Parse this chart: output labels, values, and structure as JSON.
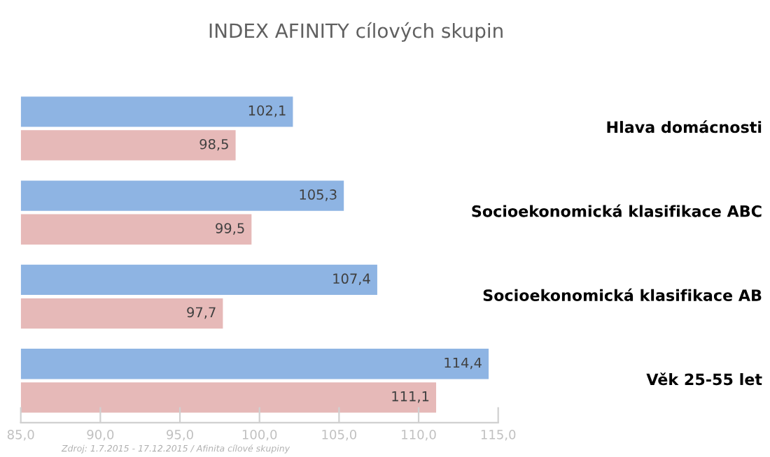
{
  "chart_data": {
    "type": "bar",
    "orientation": "horizontal",
    "title": "INDEX AFINITY cílových skupin",
    "categories": [
      "Hlava domácnosti",
      "Socioekonomická klasifikace ABC",
      "Socioekonomická klasifikace AB",
      "Věk 25-55 let"
    ],
    "series": [
      {
        "color": "#8eb4e3",
        "values": [
          102.1,
          105.3,
          107.4,
          114.4
        ],
        "value_labels": [
          "102,1",
          "105,3",
          "107,4",
          "114,4"
        ]
      },
      {
        "color": "#e6b9b8",
        "values": [
          98.5,
          99.5,
          97.7,
          111.1
        ],
        "value_labels": [
          "98,5",
          "99,5",
          "97,7",
          "111,1"
        ]
      }
    ],
    "xlim": [
      85,
      115
    ],
    "xticks": [
      {
        "value": 85,
        "label": "85,0"
      },
      {
        "value": 90,
        "label": "90,0"
      },
      {
        "value": 95,
        "label": "95,0"
      },
      {
        "value": 100,
        "label": "100,0"
      },
      {
        "value": 105,
        "label": "105,0"
      },
      {
        "value": 110,
        "label": "110,0"
      },
      {
        "value": 115,
        "label": "115,0"
      }
    ],
    "grid": false,
    "annotations": [
      "Zdroj: 1.7.2015 - 17.12.2015 / Afinita cílové skupiny"
    ]
  }
}
